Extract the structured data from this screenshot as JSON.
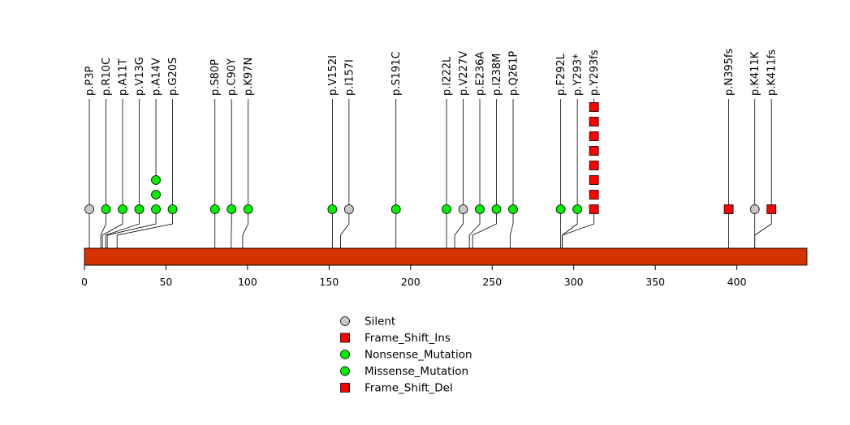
{
  "chart_data": {
    "type": "lollipop",
    "title": "",
    "xlim": [
      0,
      443
    ],
    "x_ticks": [
      0,
      50,
      100,
      150,
      200,
      250,
      300,
      350,
      400
    ],
    "domain": {
      "start": 0,
      "end": 443,
      "color": "#D63200"
    },
    "categories": {
      "Silent": {
        "shape": "circle",
        "color": "#C8C8C8"
      },
      "Frame_Shift_Ins": {
        "shape": "square",
        "color": "#FF0000"
      },
      "Nonsense_Mutation": {
        "shape": "circle",
        "color": "#00EE00"
      },
      "Missense_Mutation": {
        "shape": "circle",
        "color": "#00EE00"
      },
      "Frame_Shift_Del": {
        "shape": "square",
        "color": "#FF0000"
      }
    },
    "legend": [
      "Silent",
      "Frame_Shift_Ins",
      "Nonsense_Mutation",
      "Missense_Mutation",
      "Frame_Shift_Del"
    ],
    "legend_position": "bottom-center",
    "mutations": [
      {
        "label": "p.P3P",
        "position": 3,
        "category": "Silent",
        "count": 1
      },
      {
        "label": "p.R10C",
        "position": 10,
        "category": "Missense_Mutation",
        "count": 1
      },
      {
        "label": "p.A11T",
        "position": 11,
        "category": "Missense_Mutation",
        "count": 1
      },
      {
        "label": "p.V13G",
        "position": 13,
        "category": "Missense_Mutation",
        "count": 1
      },
      {
        "label": "p.A14V",
        "position": 14,
        "category": "Missense_Mutation",
        "count": 3
      },
      {
        "label": "p.G20S",
        "position": 20,
        "category": "Missense_Mutation",
        "count": 1
      },
      {
        "label": "p.S80P",
        "position": 80,
        "category": "Missense_Mutation",
        "count": 1
      },
      {
        "label": "p.C90Y",
        "position": 90,
        "category": "Missense_Mutation",
        "count": 1
      },
      {
        "label": "p.K97N",
        "position": 97,
        "category": "Missense_Mutation",
        "count": 1
      },
      {
        "label": "p.V152I",
        "position": 152,
        "category": "Missense_Mutation",
        "count": 1
      },
      {
        "label": "p.I157I",
        "position": 157,
        "category": "Silent",
        "count": 1
      },
      {
        "label": "p.S191C",
        "position": 191,
        "category": "Missense_Mutation",
        "count": 1
      },
      {
        "label": "p.I222L",
        "position": 222,
        "category": "Missense_Mutation",
        "count": 1
      },
      {
        "label": "p.V227V",
        "position": 227,
        "category": "Silent",
        "count": 1
      },
      {
        "label": "p.E236A",
        "position": 236,
        "category": "Missense_Mutation",
        "count": 1
      },
      {
        "label": "p.I238M",
        "position": 238,
        "category": "Missense_Mutation",
        "count": 1
      },
      {
        "label": "p.Q261P",
        "position": 261,
        "category": "Missense_Mutation",
        "count": 1
      },
      {
        "label": "p.F292L",
        "position": 292,
        "category": "Missense_Mutation",
        "count": 1
      },
      {
        "label": "p.Y293*",
        "position": 293,
        "category": "Nonsense_Mutation",
        "count": 1
      },
      {
        "label": "p.Y293fs",
        "position": 293,
        "category": "Frame_Shift_Del",
        "count": 8
      },
      {
        "label": "p.N395fs",
        "position": 395,
        "category": "Frame_Shift_Del",
        "count": 1
      },
      {
        "label": "p.K411K",
        "position": 411,
        "category": "Silent",
        "count": 1
      },
      {
        "label": "p.K411fs",
        "position": 411,
        "category": "Frame_Shift_Ins",
        "count": 1
      }
    ]
  }
}
